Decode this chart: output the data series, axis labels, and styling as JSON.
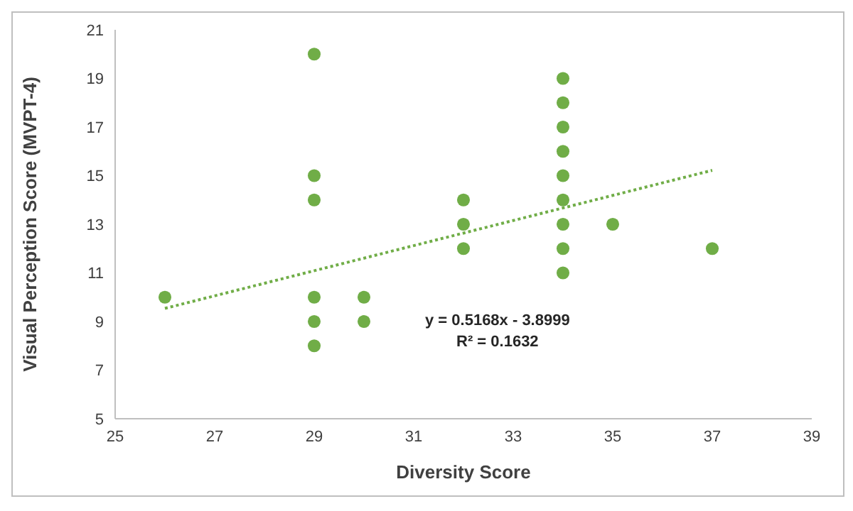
{
  "chart_data": {
    "type": "scatter",
    "xlabel": "Diversity Score",
    "ylabel": "Visual Perception Score (MVPT-4)",
    "xlim": [
      25,
      39
    ],
    "xticks": [
      25,
      27,
      29,
      31,
      33,
      35,
      37,
      39
    ],
    "ylim": [
      5,
      21
    ],
    "yticks": [
      5,
      7,
      9,
      11,
      13,
      15,
      17,
      19,
      21
    ],
    "marker": "circle",
    "series": [
      {
        "color": "#70ad47",
        "x": [
          26,
          29,
          29,
          29,
          29,
          29,
          29,
          30,
          30,
          32,
          32,
          32,
          34,
          34,
          34,
          34,
          34,
          34,
          34,
          34,
          34,
          35,
          37
        ],
        "values": [
          10,
          20,
          15,
          14,
          10,
          9,
          8,
          10,
          9,
          14,
          13,
          12,
          19,
          18,
          17,
          16,
          15,
          14,
          13,
          12,
          11,
          13,
          12
        ]
      },
      {
        "type": "line",
        "color": "#70ad47",
        "line_style": "dotted",
        "marker": "none",
        "x": [
          26,
          37
        ],
        "values": [
          9.54,
          15.22
        ]
      }
    ],
    "annotations": [
      "y = 0.5168x - 3.8999",
      "R² = 0.1632"
    ]
  }
}
